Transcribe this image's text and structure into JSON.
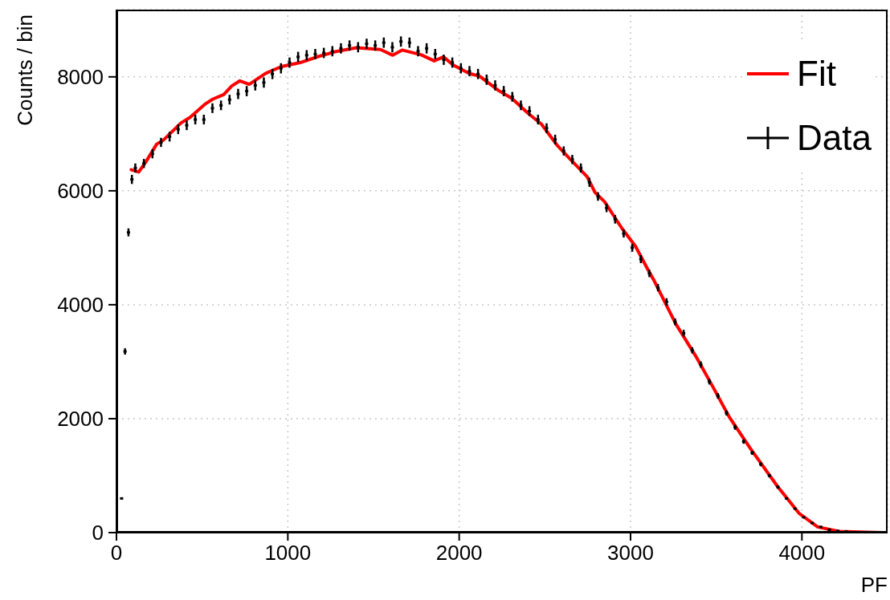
{
  "chart_data": {
    "type": "scatter",
    "xlabel": "PF",
    "ylabel": "Counts / bin",
    "xlim": [
      0,
      4500
    ],
    "xticks": [
      0,
      1000,
      2000,
      3000,
      4000
    ],
    "ylim": [
      0,
      9180
    ],
    "yticks": [
      0,
      2000,
      4000,
      6000,
      8000
    ],
    "grid": true,
    "legend": "top right",
    "series": [
      {
        "name": "Fit",
        "type": "line",
        "color": "#ff0000",
        "line_style": "solid",
        "x": [
          86,
          130,
          172,
          235,
          274,
          376,
          430,
          516,
          563,
          626,
          673,
          720,
          775,
          869,
          962,
          1072,
          1181,
          1275,
          1401,
          1541,
          1612,
          1667,
          1776,
          1854,
          1909,
          1964,
          2058,
          2120,
          2230,
          2308,
          2402,
          2480,
          2574,
          2653,
          2746,
          2793,
          2848,
          2950,
          3028,
          3106,
          3138,
          3263,
          3388,
          3482,
          3576,
          3701,
          3858,
          3983,
          4092,
          4217,
          4467
        ],
        "values": [
          6370,
          6330,
          6510,
          6820,
          6890,
          7190,
          7290,
          7520,
          7610,
          7690,
          7840,
          7930,
          7870,
          8060,
          8180,
          8250,
          8360,
          8440,
          8510,
          8480,
          8380,
          8470,
          8390,
          8280,
          8350,
          8210,
          8060,
          8010,
          7760,
          7620,
          7360,
          7170,
          6790,
          6540,
          6250,
          5970,
          5810,
          5340,
          5030,
          4590,
          4420,
          3670,
          3060,
          2550,
          2030,
          1470,
          810,
          340,
          100,
          20,
          0
        ]
      },
      {
        "name": "Data",
        "color": "#000000",
        "marker": "square",
        "x": [
          30,
          50,
          70,
          90,
          110,
          160,
          210,
          260,
          310,
          360,
          410,
          460,
          510,
          560,
          610,
          660,
          710,
          760,
          810,
          860,
          910,
          960,
          1010,
          1060,
          1110,
          1160,
          1210,
          1260,
          1310,
          1360,
          1410,
          1460,
          1510,
          1560,
          1610,
          1660,
          1710,
          1760,
          1810,
          1860,
          1910,
          1960,
          2010,
          2060,
          2110,
          2160,
          2210,
          2260,
          2310,
          2360,
          2410,
          2460,
          2510,
          2560,
          2610,
          2660,
          2710,
          2760,
          2810,
          2860,
          2910,
          2960,
          3010,
          3060,
          3110,
          3160,
          3210,
          3260,
          3310,
          3360,
          3410,
          3460,
          3510,
          3560,
          3610,
          3660,
          3710,
          3760,
          3810,
          3860,
          3910,
          3960,
          4010,
          4060,
          4110,
          4160,
          4210,
          4260
        ],
        "values": [
          600,
          3180,
          5270,
          6200,
          6400,
          6480,
          6650,
          6850,
          6950,
          7080,
          7150,
          7250,
          7250,
          7450,
          7500,
          7600,
          7700,
          7750,
          7850,
          7900,
          8050,
          8150,
          8250,
          8350,
          8380,
          8400,
          8420,
          8450,
          8500,
          8550,
          8520,
          8580,
          8550,
          8600,
          8520,
          8620,
          8600,
          8450,
          8500,
          8400,
          8300,
          8250,
          8150,
          8100,
          8050,
          7950,
          7850,
          7750,
          7650,
          7500,
          7400,
          7250,
          7100,
          6900,
          6700,
          6550,
          6400,
          6150,
          5900,
          5700,
          5500,
          5250,
          5000,
          4800,
          4550,
          4300,
          4050,
          3700,
          3500,
          3200,
          2950,
          2650,
          2400,
          2100,
          1850,
          1600,
          1400,
          1200,
          1000,
          800,
          600,
          420,
          270,
          170,
          100,
          50,
          30,
          20
        ],
        "errors": [
          null,
          55,
          70,
          80,
          80,
          80,
          80,
          80,
          85,
          85,
          85,
          85,
          85,
          85,
          85,
          85,
          90,
          90,
          90,
          90,
          90,
          90,
          90,
          90,
          90,
          90,
          90,
          90,
          90,
          90,
          90,
          90,
          90,
          90,
          90,
          90,
          90,
          90,
          90,
          90,
          90,
          90,
          90,
          90,
          90,
          90,
          90,
          90,
          85,
          85,
          85,
          85,
          85,
          85,
          80,
          80,
          80,
          80,
          75,
          75,
          75,
          70,
          70,
          70,
          65,
          65,
          65,
          60,
          60,
          55,
          55,
          50,
          50,
          45,
          45,
          40,
          35,
          35,
          30,
          30,
          null,
          null,
          null,
          null,
          null,
          null,
          null,
          null
        ]
      }
    ]
  }
}
